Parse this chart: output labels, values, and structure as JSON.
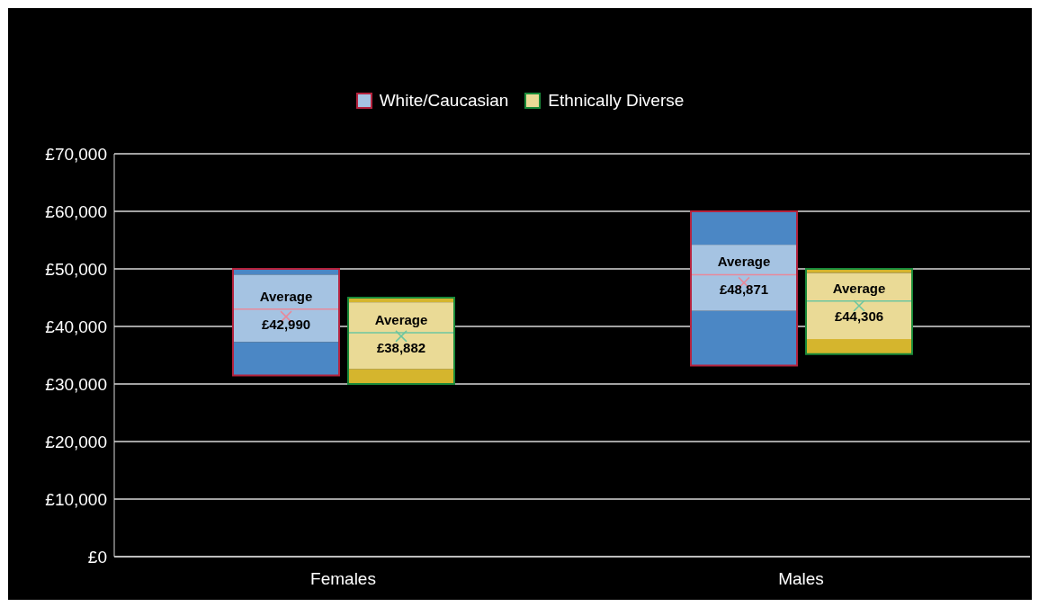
{
  "chart_data": {
    "type": "box",
    "categories": [
      "Females",
      "Males"
    ],
    "series": [
      {
        "name": "White/Caucasian",
        "color": "#a5c3e2",
        "boxes": [
          {
            "low": 31500,
            "q1": 37300,
            "median": 43000,
            "q3": 49000,
            "high": 50000,
            "mean": 41700
          },
          {
            "low": 33200,
            "q1": 42700,
            "median": 49000,
            "q3": 54200,
            "high": 60000,
            "mean": 47600
          }
        ],
        "value_labels": [
          "Average £42,990",
          "Average £48,871"
        ]
      },
      {
        "name": "Ethnically Diverse",
        "color": "#eada96",
        "boxes": [
          {
            "low": 30000,
            "q1": 32600,
            "median": 38900,
            "q3": 44200,
            "high": 45000,
            "mean": 38300
          },
          {
            "low": 35200,
            "q1": 37800,
            "median": 44400,
            "q3": 49300,
            "high": 50000,
            "mean": 43600
          }
        ],
        "value_labels": [
          "Average £38,882",
          "Average £44,306"
        ]
      }
    ],
    "ylim": [
      0,
      70000
    ],
    "yticks": [
      {
        "value": 0,
        "label": "£0"
      },
      {
        "value": 10000,
        "label": "£10,000"
      },
      {
        "value": 20000,
        "label": "£20,000"
      },
      {
        "value": 30000,
        "label": "£30,000"
      },
      {
        "value": 40000,
        "label": "£40,000"
      },
      {
        "value": 50000,
        "label": "£50,000"
      },
      {
        "value": 60000,
        "label": "£60,000"
      },
      {
        "value": 70000,
        "label": "£70,000"
      }
    ],
    "grid": "y",
    "legend": "top"
  }
}
